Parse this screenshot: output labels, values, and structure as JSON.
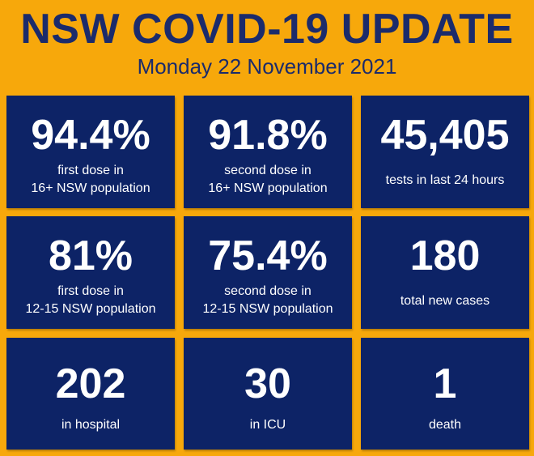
{
  "header": {
    "title": "NSW COVID-19 UPDATE",
    "date": "Monday 22 November 2021"
  },
  "colors": {
    "background": "#f7a80b",
    "card": "#0d2366",
    "title_text": "#1b2b6b",
    "card_text": "#ffffff"
  },
  "stats": [
    {
      "value": "94.4%",
      "label": "first dose in\n16+ NSW population"
    },
    {
      "value": "91.8%",
      "label": "second dose in\n16+ NSW population"
    },
    {
      "value": "45,405",
      "label": "tests in last 24 hours"
    },
    {
      "value": "81%",
      "label": "first dose in\n12-15 NSW population"
    },
    {
      "value": "75.4%",
      "label": "second dose in\n12-15 NSW population"
    },
    {
      "value": "180",
      "label": "total new cases"
    },
    {
      "value": "202",
      "label": "in hospital"
    },
    {
      "value": "30",
      "label": "in ICU"
    },
    {
      "value": "1",
      "label": "death"
    }
  ]
}
